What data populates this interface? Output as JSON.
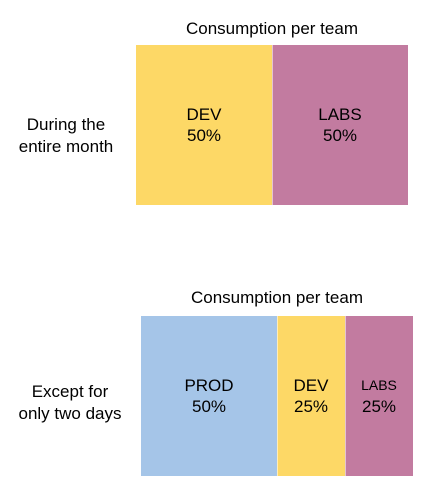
{
  "colors": {
    "PROD": "#a5c5e8",
    "DEV": "#fdd866",
    "LABS": "#c27ba0"
  },
  "chart_data": [
    {
      "type": "bar",
      "stacked": true,
      "orientation": "horizontal",
      "normalized": true,
      "title": "Consumption per team",
      "row_label": [
        "During the",
        "entire month"
      ],
      "categories": [
        "DEV",
        "LABS"
      ],
      "values": [
        50,
        50
      ],
      "value_labels": [
        "50%",
        "50%"
      ]
    },
    {
      "type": "bar",
      "stacked": true,
      "orientation": "horizontal",
      "normalized": true,
      "title": "Consumption per team",
      "row_label": [
        "Except for",
        "only two days"
      ],
      "categories": [
        "PROD",
        "DEV",
        "LABS"
      ],
      "values": [
        50,
        25,
        25
      ],
      "value_labels": [
        "50%",
        "25%",
        "25%"
      ]
    }
  ]
}
